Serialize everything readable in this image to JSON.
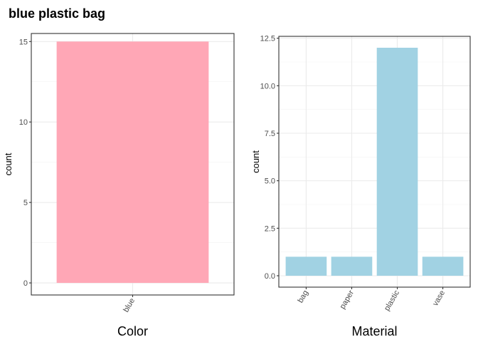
{
  "title": "blue plastic bag",
  "chart_data": [
    {
      "type": "bar",
      "categories": [
        "blue"
      ],
      "values": [
        15
      ],
      "xlabel": "Color",
      "ylabel": "count",
      "ylim": [
        -0.75,
        15.5
      ],
      "yticks": [
        0,
        5,
        10,
        15
      ],
      "ytick_labels": [
        "0",
        "5",
        "10",
        "15"
      ],
      "bar_color": "#ffa7b6",
      "grid": true,
      "xtick_rotation": -60
    },
    {
      "type": "bar",
      "categories": [
        "bag",
        "paper",
        "plastic",
        "vase"
      ],
      "values": [
        1,
        1,
        12,
        1
      ],
      "xlabel": "Material",
      "ylabel": "count",
      "ylim": [
        -0.6,
        12.6
      ],
      "yticks": [
        0,
        2.5,
        5,
        7.5,
        10,
        12.5
      ],
      "ytick_labels": [
        "0.0",
        "2.5",
        "5.0",
        "7.5",
        "10.0",
        "12.5"
      ],
      "bar_color": "#a1d2e3",
      "grid": true,
      "xtick_rotation": -60
    }
  ]
}
